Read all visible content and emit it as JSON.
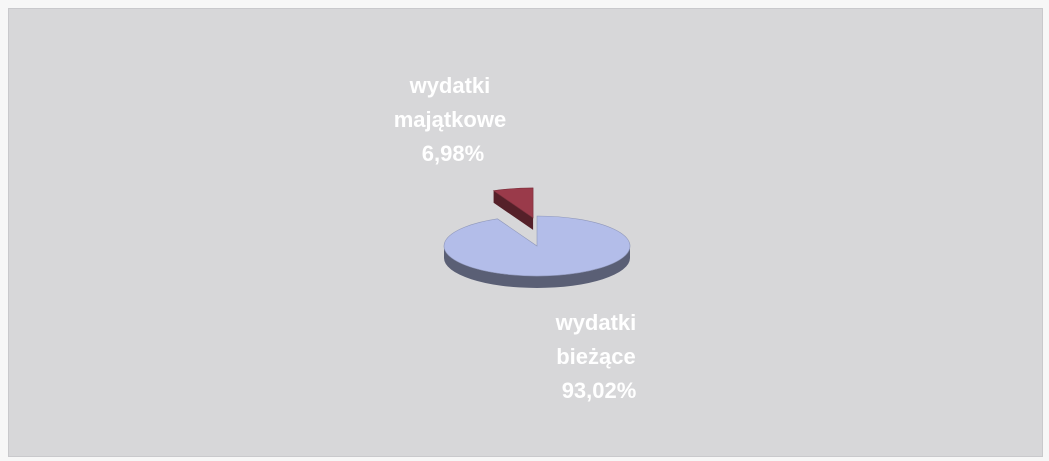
{
  "chart_data": {
    "type": "pie",
    "style": "3d",
    "background_color": "#d7d7d9",
    "slices": [
      {
        "label_lines": [
          "wydatki",
          "bieżące"
        ],
        "value_label": "93,02%",
        "value": 93.02,
        "color": "#b3bde9",
        "exploded": false
      },
      {
        "label_lines": [
          "wydatki",
          "majątkowe"
        ],
        "value_label": "6,98%",
        "value": 6.98,
        "color": "#9a3a4a",
        "exploded": true
      }
    ]
  }
}
